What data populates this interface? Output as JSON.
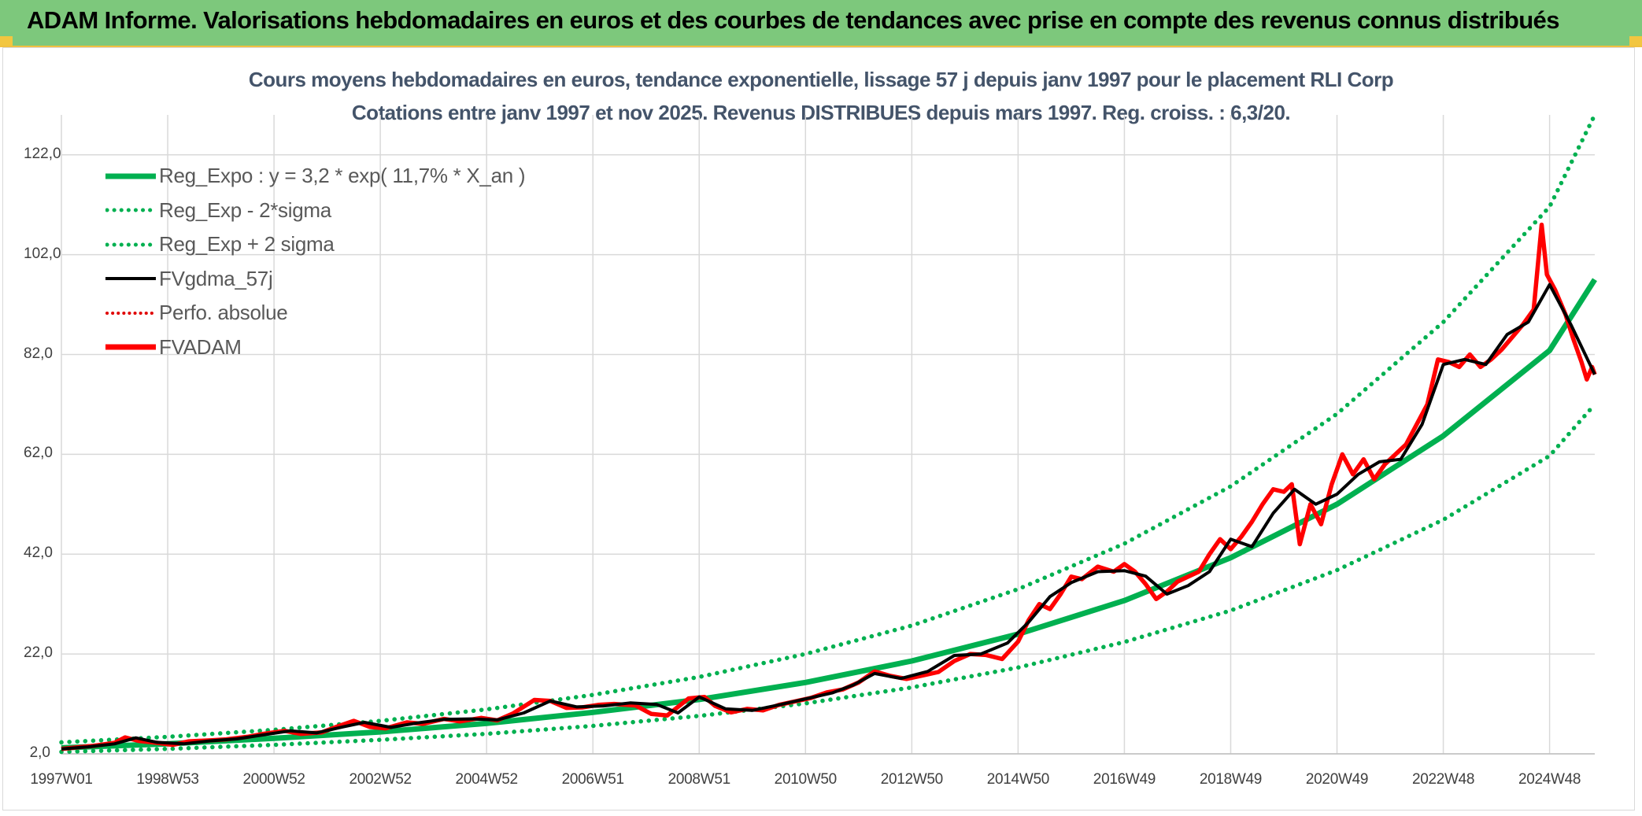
{
  "header": {
    "title": "ADAM Informe. Valorisations hebdomadaires en euros et des courbes de tendances avec prise en compte des revenus connus distribués"
  },
  "colors": {
    "header_bg": "#7dc87c",
    "reg_expo": "#00b050",
    "sigma": "#00b050",
    "fvgdma": "#000000",
    "perfo": "#e00000",
    "fvadam": "#ff0000",
    "title_text": "#44546a"
  },
  "chart_data": {
    "type": "line",
    "title": "Cours moyens hebdomadaires en euros, tendance exponentielle, lissage 57 j depuis janv 1997 pour le placement RLI Corp",
    "subtitle": "Cotations entre janv 1997 et nov 2025. Revenus DISTRIBUES depuis mars 1997. Reg. croiss. : 6,3/20.",
    "xlabel": "",
    "ylabel": "",
    "ylim": [
      2.0,
      130.0
    ],
    "xlim": [
      1997.0,
      2025.85
    ],
    "y_ticks": [
      "2,0",
      "22,0",
      "42,0",
      "62,0",
      "82,0",
      "102,0",
      "122,0"
    ],
    "y_tick_values": [
      2,
      22,
      42,
      62,
      82,
      102,
      122
    ],
    "x_ticks": [
      "1997W01",
      "1998W53",
      "2000W52",
      "2002W52",
      "2004W52",
      "2006W51",
      "2008W51",
      "2010W50",
      "2012W50",
      "2014W50",
      "2016W49",
      "2018W49",
      "2020W49",
      "2022W48",
      "2024W48"
    ],
    "x_tick_values": [
      1997.0,
      1999.0,
      2001.0,
      2003.0,
      2005.0,
      2007.0,
      2009.0,
      2011.0,
      2013.0,
      2015.0,
      2017.0,
      2019.0,
      2021.0,
      2023.0,
      2025.0
    ],
    "legend": [
      {
        "label": "Reg_Expo : y = 3,2 * exp( 11,7% *  X_an )",
        "style": "solid-thick-green"
      },
      {
        "label": "Reg_Exp - 2*sigma",
        "style": "dotted-green"
      },
      {
        "label": "Reg_Exp + 2 sigma",
        "style": "dotted-green"
      },
      {
        "label": "FVgdma_57j",
        "style": "solid-black"
      },
      {
        "label": "Perfo. absolue",
        "style": "dotted-red"
      },
      {
        "label": "FVADAM",
        "style": "solid-thick-red"
      }
    ],
    "series": [
      {
        "name": "Reg_Expo : y = 3,2 * exp( 11,7% *  X_an )",
        "x": [
          1997.0,
          1999.0,
          2001.0,
          2003.0,
          2005.0,
          2007.0,
          2009.0,
          2011.0,
          2013.0,
          2015.0,
          2017.0,
          2019.0,
          2021.0,
          2023.0,
          2025.0,
          2025.85
        ],
        "values": [
          3.2,
          4.0,
          5.1,
          6.4,
          8.1,
          10.3,
          12.9,
          16.3,
          20.6,
          26.0,
          32.7,
          41.3,
          52.0,
          65.7,
          82.8,
          97.0
        ]
      },
      {
        "name": "Reg_Exp - 2*sigma",
        "x": [
          1997.0,
          1999.0,
          2001.0,
          2003.0,
          2005.0,
          2007.0,
          2009.0,
          2011.0,
          2013.0,
          2015.0,
          2017.0,
          2019.0,
          2021.0,
          2023.0,
          2025.0,
          2025.85
        ],
        "values": [
          2.4,
          3.0,
          3.8,
          4.8,
          6.0,
          7.6,
          9.6,
          12.1,
          15.3,
          19.3,
          24.4,
          30.7,
          38.8,
          48.9,
          61.7,
          72.0
        ]
      },
      {
        "name": "Reg_Exp + 2 sigma",
        "x": [
          1997.0,
          1999.0,
          2001.0,
          2003.0,
          2005.0,
          2007.0,
          2009.0,
          2011.0,
          2013.0,
          2015.0,
          2017.0,
          2019.0,
          2021.0,
          2023.0,
          2025.0,
          2025.85
        ],
        "values": [
          4.3,
          5.4,
          6.8,
          8.6,
          10.9,
          13.8,
          17.4,
          22.0,
          27.7,
          35.0,
          44.1,
          55.6,
          70.1,
          88.5,
          111.6,
          130.0
        ]
      },
      {
        "name": "FVgdma_57j",
        "x": [
          1997.0,
          1997.5,
          1998.0,
          1998.4,
          1998.8,
          1999.3,
          1999.8,
          2000.3,
          2000.8,
          2001.3,
          2001.8,
          2002.3,
          2002.7,
          2003.2,
          2003.7,
          2004.2,
          2004.7,
          2005.2,
          2005.7,
          2006.2,
          2006.7,
          2007.2,
          2007.7,
          2008.2,
          2008.6,
          2009.0,
          2009.5,
          2010.0,
          2010.5,
          2011.0,
          2011.5,
          2011.9,
          2012.3,
          2012.8,
          2013.3,
          2013.8,
          2014.3,
          2014.8,
          2015.2,
          2015.6,
          2016.0,
          2016.5,
          2017.0,
          2017.4,
          2017.8,
          2018.2,
          2018.6,
          2019.0,
          2019.4,
          2019.8,
          2020.2,
          2020.6,
          2021.0,
          2021.4,
          2021.8,
          2022.2,
          2022.6,
          2023.0,
          2023.4,
          2023.8,
          2024.2,
          2024.6,
          2025.0,
          2025.4,
          2025.85
        ],
        "values": [
          3.0,
          3.4,
          4.0,
          5.2,
          4.3,
          4.0,
          4.6,
          5.0,
          5.8,
          6.6,
          6.2,
          7.4,
          8.3,
          7.3,
          8.2,
          8.9,
          9.0,
          8.8,
          10.2,
          12.6,
          11.4,
          11.6,
          12.2,
          11.9,
          10.2,
          13.4,
          11.0,
          10.7,
          11.8,
          13.0,
          14.2,
          15.8,
          18.1,
          17.1,
          18.5,
          21.7,
          22.0,
          24.2,
          28.4,
          33.5,
          36.3,
          38.5,
          38.7,
          37.6,
          34.0,
          35.7,
          38.5,
          45.0,
          43.5,
          50.2,
          55.0,
          52.0,
          54.0,
          58.0,
          60.5,
          61.0,
          68.0,
          80.0,
          81.0,
          80.0,
          86.0,
          88.5,
          96.0,
          88.0,
          78.0
        ]
      },
      {
        "name": "FVADAM",
        "x": [
          1997.0,
          1997.3,
          1997.6,
          1998.0,
          1998.2,
          1998.45,
          1998.8,
          1999.1,
          1999.4,
          1999.8,
          2000.1,
          2000.5,
          2000.8,
          2001.2,
          2001.5,
          2001.9,
          2002.2,
          2002.5,
          2002.8,
          2003.1,
          2003.5,
          2003.8,
          2004.2,
          2004.5,
          2004.9,
          2005.2,
          2005.5,
          2005.9,
          2006.2,
          2006.5,
          2006.8,
          2007.1,
          2007.4,
          2007.8,
          2008.1,
          2008.4,
          2008.8,
          2009.1,
          2009.3,
          2009.6,
          2009.9,
          2010.2,
          2010.5,
          2010.8,
          2011.1,
          2011.4,
          2011.7,
          2012.0,
          2012.3,
          2012.6,
          2012.9,
          2013.2,
          2013.5,
          2013.8,
          2014.1,
          2014.4,
          2014.7,
          2015.0,
          2015.2,
          2015.4,
          2015.6,
          2015.8,
          2016.0,
          2016.2,
          2016.5,
          2016.8,
          2017.0,
          2017.2,
          2017.4,
          2017.6,
          2017.8,
          2018.0,
          2018.2,
          2018.4,
          2018.6,
          2018.8,
          2019.0,
          2019.2,
          2019.4,
          2019.6,
          2019.8,
          2020.0,
          2020.15,
          2020.3,
          2020.5,
          2020.7,
          2020.9,
          2021.1,
          2021.3,
          2021.5,
          2021.7,
          2021.9,
          2022.1,
          2022.3,
          2022.5,
          2022.7,
          2022.9,
          2023.1,
          2023.3,
          2023.5,
          2023.7,
          2023.9,
          2024.1,
          2024.3,
          2024.5,
          2024.7,
          2024.85,
          2024.95,
          2025.1,
          2025.3,
          2025.45,
          2025.6,
          2025.7,
          2025.8,
          2025.85
        ],
        "values": [
          3.0,
          3.3,
          3.6,
          4.2,
          5.3,
          4.6,
          4.2,
          3.8,
          4.5,
          4.7,
          4.9,
          5.4,
          6.0,
          6.6,
          6.0,
          6.3,
          7.5,
          8.6,
          7.4,
          7.1,
          8.3,
          8.0,
          9.0,
          8.5,
          9.2,
          8.7,
          10.1,
          12.8,
          12.6,
          11.2,
          11.3,
          11.8,
          12.0,
          11.7,
          10.0,
          9.7,
          13.1,
          13.4,
          11.6,
          10.3,
          11.0,
          10.7,
          11.8,
          12.5,
          13.2,
          14.3,
          14.9,
          16.3,
          18.5,
          17.6,
          17.0,
          17.7,
          18.4,
          20.6,
          22.0,
          21.8,
          21.0,
          24.5,
          28.8,
          32.0,
          31.0,
          34.0,
          37.5,
          37.0,
          39.5,
          38.5,
          40.0,
          38.5,
          36.0,
          33.0,
          34.5,
          36.5,
          37.5,
          38.5,
          42.0,
          45.0,
          43.0,
          45.5,
          48.5,
          52.0,
          55.0,
          54.5,
          56.0,
          44.0,
          52.0,
          48.0,
          56.0,
          62.0,
          58.0,
          61.0,
          57.0,
          60.0,
          62.0,
          64.0,
          68.0,
          72.0,
          81.0,
          80.5,
          79.5,
          82.0,
          79.5,
          81.0,
          83.0,
          85.5,
          88.0,
          91.0,
          108.0,
          98.0,
          95.0,
          90.0,
          85.0,
          80.5,
          77.0,
          79.5,
          78.0
        ]
      }
    ]
  }
}
